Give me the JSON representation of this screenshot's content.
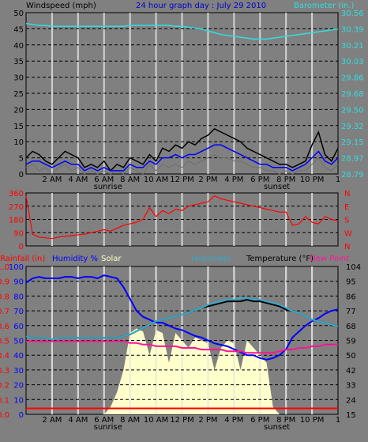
{
  "header": {
    "windspeed_label": "Windspeed (mph)",
    "title": "24 hour graph day : July 29 2010",
    "barometer_label": "Barometer (in.)"
  },
  "panel3_header": {
    "rainfall_label": "Rainfall (in)",
    "humidity_label": "Humidity %",
    "solar_label": "Solar",
    "heatindex_label": "Heatindex",
    "temperature_label": "Temperature (°F)",
    "dewpoint_label": "Dew Point"
  },
  "time_axis": {
    "labels": [
      "2 AM",
      "4 AM",
      "6 AM",
      "8 AM",
      "10 AM",
      "12 PM",
      "2 PM",
      "4 PM",
      "6 PM",
      "8 PM",
      "10 PM",
      "1"
    ],
    "sunrise": "sunrise",
    "sunset": "sunset"
  },
  "colors": {
    "wind": "#000000",
    "gust": "#6e6e6e",
    "avg_wind": "#0000ff",
    "barometer": "#33dddd",
    "wind_dir": "#ff0000",
    "humidity": "#0000ff",
    "solar": "#ffffcc",
    "temperature": "#000000",
    "heatindex": "#33aacc",
    "dewpoint": "#ff1493",
    "rain": "#ff0000",
    "grid": "#000000",
    "day_line": "#dddddd"
  },
  "chart_data": [
    {
      "type": "line",
      "name": "wind-barometer",
      "xlabel": "",
      "ylabel": "Windspeed (mph)",
      "ylim": [
        0,
        50
      ],
      "y_ticks": [
        "0",
        "5",
        "10",
        "15",
        "20",
        "25",
        "30",
        "35",
        "40",
        "45",
        "50"
      ],
      "y2label": "Barometer (in.)",
      "y2lim": [
        28.79,
        30.56
      ],
      "y2_ticks": [
        "28.79",
        "28.97",
        "29.15",
        "29.32",
        "29.50",
        "29.68",
        "29.86",
        "30.03",
        "30.21",
        "30.39",
        "30.56"
      ],
      "x_hours": [
        0,
        0.5,
        1,
        1.5,
        2,
        2.5,
        3,
        3.5,
        4,
        4.5,
        5,
        5.5,
        6,
        6.5,
        7,
        7.5,
        8,
        8.5,
        9,
        9.5,
        10,
        10.5,
        11,
        11.5,
        12,
        12.5,
        13,
        13.5,
        14,
        14.5,
        15,
        15.5,
        16,
        16.5,
        17,
        17.5,
        18,
        18.5,
        19,
        19.5,
        20,
        20.5,
        21,
        21.5,
        22,
        22.5,
        23,
        23.5,
        24
      ],
      "series": [
        {
          "key": "wind",
          "values": [
            5,
            7,
            6,
            4,
            3,
            5,
            7,
            6,
            5,
            2,
            3,
            2,
            4,
            1,
            3,
            2,
            5,
            4,
            3,
            6,
            4,
            8,
            7,
            9,
            8,
            10,
            9,
            11,
            12,
            14,
            13,
            12,
            11,
            10,
            8,
            7,
            6,
            5,
            4,
            3,
            3,
            2,
            3,
            4,
            9,
            13,
            6,
            4,
            8
          ]
        },
        {
          "key": "gust",
          "values": [
            2,
            3,
            1,
            2,
            0,
            2,
            3,
            1,
            2,
            0,
            1,
            0,
            1,
            0,
            1,
            0,
            2,
            1,
            0,
            3,
            1,
            3,
            2,
            3,
            2,
            4,
            3,
            4,
            5,
            6,
            5,
            5,
            4,
            4,
            3,
            2,
            2,
            1,
            1,
            0,
            1,
            0,
            1,
            1,
            3,
            5,
            2,
            1,
            3
          ]
        },
        {
          "key": "avg_wind",
          "values": [
            3,
            4,
            4,
            3,
            2,
            3,
            4,
            3,
            3,
            1,
            2,
            1,
            2,
            1,
            1,
            1,
            3,
            2,
            2,
            4,
            3,
            5,
            5,
            6,
            5,
            6,
            6,
            7,
            8,
            9,
            9,
            8,
            7,
            6,
            5,
            4,
            3,
            3,
            2,
            2,
            2,
            1,
            2,
            3,
            5,
            7,
            4,
            3,
            5
          ]
        },
        {
          "key": "barometer",
          "values": [
            30.44,
            30.43,
            30.42,
            30.42,
            30.41,
            30.41,
            30.41,
            30.41,
            30.41,
            30.41,
            30.41,
            30.41,
            30.41,
            30.41,
            30.41,
            30.41,
            30.42,
            30.42,
            30.42,
            30.42,
            30.42,
            30.42,
            30.42,
            30.41,
            30.41,
            30.4,
            30.39,
            30.38,
            30.36,
            30.34,
            30.32,
            30.31,
            30.3,
            30.29,
            30.28,
            30.27,
            30.27,
            30.27,
            30.28,
            30.29,
            30.3,
            30.31,
            30.32,
            30.33,
            30.34,
            30.35,
            30.36,
            30.37,
            30.38
          ]
        }
      ]
    },
    {
      "type": "line",
      "name": "wind-direction",
      "ylabel": "",
      "ylim": [
        0,
        360
      ],
      "y_ticks": [
        "0",
        "90",
        "180",
        "270",
        "360"
      ],
      "y2_ticks": [
        "N",
        "W",
        "S",
        "E",
        "N"
      ],
      "x_hours": [
        0,
        0.5,
        1,
        1.5,
        2,
        2.5,
        3,
        3.5,
        4,
        4.5,
        5,
        5.5,
        6,
        6.5,
        7,
        7.5,
        8,
        8.5,
        9,
        9.5,
        10,
        10.5,
        11,
        11.5,
        12,
        12.5,
        13,
        13.5,
        14,
        14.5,
        15,
        15.5,
        16,
        16.5,
        17,
        17.5,
        18,
        18.5,
        19,
        19.5,
        20,
        20.5,
        21,
        21.5,
        22,
        22.5,
        23,
        23.5,
        24
      ],
      "series": [
        {
          "key": "wind_dir",
          "values": [
            340,
            80,
            60,
            55,
            50,
            60,
            65,
            70,
            75,
            80,
            90,
            100,
            110,
            100,
            120,
            140,
            150,
            160,
            180,
            260,
            200,
            240,
            220,
            250,
            240,
            270,
            280,
            290,
            300,
            340,
            320,
            310,
            300,
            290,
            280,
            270,
            260,
            250,
            240,
            230,
            230,
            140,
            150,
            200,
            160,
            150,
            200,
            180,
            170
          ]
        }
      ]
    },
    {
      "type": "line",
      "name": "temp-humidity-solar",
      "ylabel": "Rainfall (in)",
      "ylim": [
        0.0,
        1.0
      ],
      "y_ticks": [
        "0.0",
        "0.1",
        "0.2",
        "0.3",
        "0.4",
        "0.5",
        "0.6",
        "0.7",
        "0.8",
        "0.9",
        "1.0"
      ],
      "y_ticks_humidity": [
        "0",
        "10",
        "20",
        "30",
        "40",
        "50",
        "60",
        "70",
        "80",
        "90",
        "100"
      ],
      "y2label": "Temperature (°F)",
      "y2lim": [
        15,
        104
      ],
      "y2_ticks": [
        "15",
        "24",
        "33",
        "42",
        "50",
        "59",
        "68",
        "77",
        "86",
        "95",
        "104"
      ],
      "x_hours": [
        0,
        0.5,
        1,
        1.5,
        2,
        2.5,
        3,
        3.5,
        4,
        4.5,
        5,
        5.5,
        6,
        6.5,
        7,
        7.5,
        8,
        8.5,
        9,
        9.5,
        10,
        10.5,
        11,
        11.5,
        12,
        12.5,
        13,
        13.5,
        14,
        14.5,
        15,
        15.5,
        16,
        16.5,
        17,
        17.5,
        18,
        18.5,
        19,
        19.5,
        20,
        20.5,
        21,
        21.5,
        22,
        22.5,
        23,
        23.5,
        24
      ],
      "series": [
        {
          "key": "humidity",
          "values": [
            89,
            92,
            93,
            92,
            92,
            92,
            93,
            93,
            92,
            93,
            93,
            92,
            94,
            93,
            92,
            86,
            78,
            70,
            66,
            64,
            62,
            62,
            60,
            58,
            57,
            55,
            53,
            52,
            50,
            48,
            47,
            46,
            44,
            42,
            40,
            40,
            38,
            37,
            38,
            40,
            44,
            52,
            56,
            60,
            63,
            65,
            68,
            70,
            71
          ]
        },
        {
          "key": "temperature",
          "values": [
            62,
            61,
            61,
            61,
            60,
            61,
            61,
            61,
            61,
            61,
            61,
            61,
            61,
            61,
            61,
            62,
            63,
            65,
            67,
            69,
            71,
            72,
            73,
            74,
            75,
            76,
            78,
            79,
            80,
            81,
            82,
            83,
            83,
            83,
            84,
            83,
            83,
            82,
            81,
            80,
            78,
            77,
            76,
            74,
            72,
            71,
            70,
            69,
            68
          ]
        },
        {
          "key": "heatindex",
          "values": [
            62,
            61,
            61,
            61,
            60,
            61,
            61,
            61,
            61,
            61,
            61,
            61,
            61,
            61,
            61,
            62,
            63,
            65,
            67,
            69,
            71,
            72,
            73,
            74,
            75,
            76,
            78,
            79,
            81,
            82,
            83,
            84,
            84,
            85,
            85,
            84,
            84,
            83,
            82,
            81,
            79,
            77,
            76,
            74,
            72,
            71,
            70,
            69,
            68
          ]
        },
        {
          "key": "dewpoint",
          "values": [
            59,
            59,
            59,
            59,
            59,
            59,
            59,
            59,
            59,
            59,
            59,
            59,
            59,
            59,
            59,
            59,
            58,
            58,
            57,
            57,
            56,
            56,
            56,
            56,
            55,
            55,
            55,
            54,
            54,
            54,
            54,
            53,
            53,
            53,
            52,
            52,
            52,
            52,
            52,
            53,
            54,
            54,
            55,
            55,
            56,
            56,
            57,
            57,
            57
          ]
        },
        {
          "key": "solar",
          "values": [
            0,
            0,
            0,
            0,
            0,
            0,
            0,
            0,
            0,
            0,
            0,
            0,
            0,
            0.05,
            0.15,
            0.3,
            0.55,
            0.58,
            0.56,
            0.4,
            0.57,
            0.55,
            0.35,
            0.55,
            0.5,
            0.45,
            0.52,
            0.5,
            0.48,
            0.3,
            0.45,
            0.5,
            0.48,
            0.3,
            0.5,
            0.45,
            0.4,
            0.35,
            0.05,
            0,
            0,
            0,
            0,
            0,
            0,
            0,
            0,
            0,
            0
          ]
        },
        {
          "key": "rain",
          "values": [
            0.04,
            0.04,
            0.04,
            0.04,
            0.04,
            0.04,
            0.04,
            0.04,
            0.04,
            0.04,
            0.04,
            0.04,
            0.04,
            0.04,
            0.04,
            0.04,
            0.04,
            0.04,
            0.04,
            0.04,
            0.04,
            0.04,
            0.04,
            0.04,
            0.04,
            0.04,
            0.04,
            0.04,
            0.04,
            0.04,
            0.04,
            0.04,
            0.04,
            0.04,
            0.04,
            0.04,
            0.04,
            0.04,
            0.04,
            0.04,
            0.04,
            0.04,
            0.04,
            0.04,
            0.04,
            0.04,
            0.04,
            0.04,
            0.04
          ]
        }
      ]
    }
  ]
}
